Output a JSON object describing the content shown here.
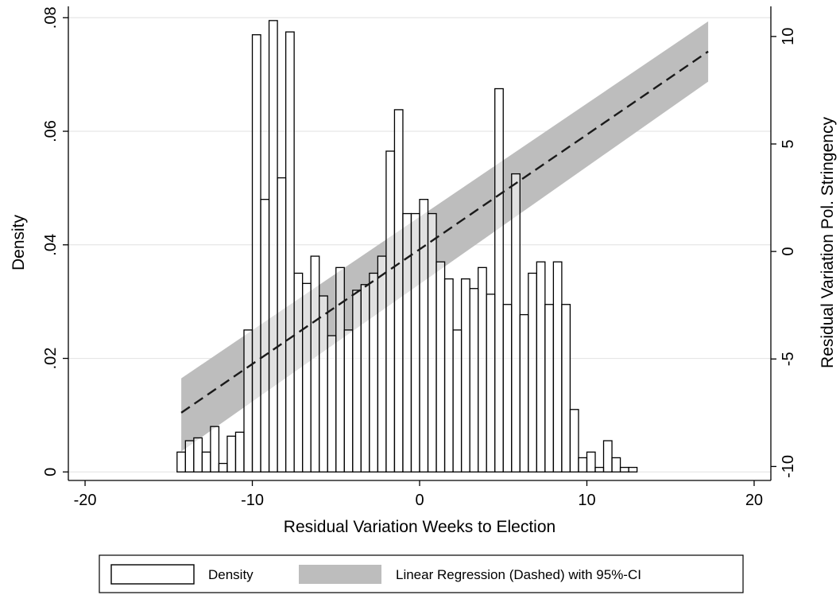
{
  "chart_data": {
    "type": "bar",
    "title": "",
    "xlabel": "Residual Variation Weeks to Election",
    "ylabel": "Density",
    "y2label": "Residual Variation Pol. Stringency",
    "xlim": [
      -21,
      21
    ],
    "ylim": [
      -0.0015,
      0.082
    ],
    "y2lim": [
      -10.65,
      11.4
    ],
    "xticks": [
      -20,
      -10,
      0,
      10,
      20
    ],
    "xtick_labels": [
      "-20",
      "-10",
      "0",
      "10",
      "20"
    ],
    "yticks": [
      0,
      0.02,
      0.04,
      0.06,
      0.08
    ],
    "ytick_labels": [
      "0",
      ".02",
      ".04",
      ".06",
      ".08"
    ],
    "y2ticks": [
      -10,
      -5,
      0,
      5,
      10
    ],
    "y2tick_labels": [
      "-10",
      "-5",
      "0",
      "5",
      "10"
    ],
    "grid": true,
    "legend_position": "bottom",
    "histogram": {
      "name": "Density",
      "bin_width": 0.5,
      "bins": [
        [
          -14.25,
          0.0035
        ],
        [
          -13.75,
          0.0055
        ],
        [
          -13.25,
          0.006
        ],
        [
          -12.75,
          0.0035
        ],
        [
          -12.25,
          0.008
        ],
        [
          -11.75,
          0.0015
        ],
        [
          -11.25,
          0.0063
        ],
        [
          -10.75,
          0.007
        ],
        [
          -10.25,
          0.025
        ],
        [
          -9.75,
          0.077
        ],
        [
          -9.25,
          0.048
        ],
        [
          -8.75,
          0.0795
        ],
        [
          -8.25,
          0.0518
        ],
        [
          -7.75,
          0.0775
        ],
        [
          -7.25,
          0.035
        ],
        [
          -6.75,
          0.0332
        ],
        [
          -6.25,
          0.038
        ],
        [
          -5.75,
          0.031
        ],
        [
          -5.25,
          0.024
        ],
        [
          -4.75,
          0.036
        ],
        [
          -4.25,
          0.025
        ],
        [
          -3.75,
          0.032
        ],
        [
          -3.25,
          0.033
        ],
        [
          -2.75,
          0.035
        ],
        [
          -2.25,
          0.038
        ],
        [
          -1.75,
          0.0565
        ],
        [
          -1.25,
          0.0638
        ],
        [
          -0.75,
          0.0455
        ],
        [
          -0.25,
          0.0455
        ],
        [
          0.25,
          0.048
        ],
        [
          0.75,
          0.0455
        ],
        [
          1.25,
          0.037
        ],
        [
          1.75,
          0.034
        ],
        [
          2.25,
          0.025
        ],
        [
          2.75,
          0.034
        ],
        [
          3.25,
          0.0323
        ],
        [
          3.75,
          0.036
        ],
        [
          4.25,
          0.0313
        ],
        [
          4.75,
          0.0675
        ],
        [
          5.25,
          0.0295
        ],
        [
          5.75,
          0.0525
        ],
        [
          6.25,
          0.0277
        ],
        [
          6.75,
          0.035
        ],
        [
          7.25,
          0.037
        ],
        [
          7.75,
          0.0295
        ],
        [
          8.25,
          0.037
        ],
        [
          8.75,
          0.0295
        ],
        [
          9.25,
          0.011
        ],
        [
          9.75,
          0.0025
        ],
        [
          10.25,
          0.0035
        ],
        [
          10.75,
          0.0008
        ],
        [
          11.25,
          0.0055
        ],
        [
          11.75,
          0.0025
        ],
        [
          12.25,
          0.0008
        ],
        [
          12.75,
          0.0008
        ]
      ]
    },
    "regression": {
      "name": "Linear Regression (Dashed) with 95%-CI",
      "x": [
        -14.25,
        17.25
      ],
      "y": [
        -7.5,
        9.3
      ],
      "ci_lower": [
        -9.3,
        7.9
      ],
      "ci_upper": [
        -5.9,
        10.7
      ]
    }
  },
  "legend": {
    "density_label": "Density",
    "regression_label": "Linear Regression (Dashed) with 95%-CI"
  },
  "colors": {
    "bar_fill": "#ffffff",
    "bar_stroke": "#000000",
    "ci_fill": "#bdbdbd",
    "line": "#1a1a1a",
    "grid": "#e6e6e6"
  }
}
